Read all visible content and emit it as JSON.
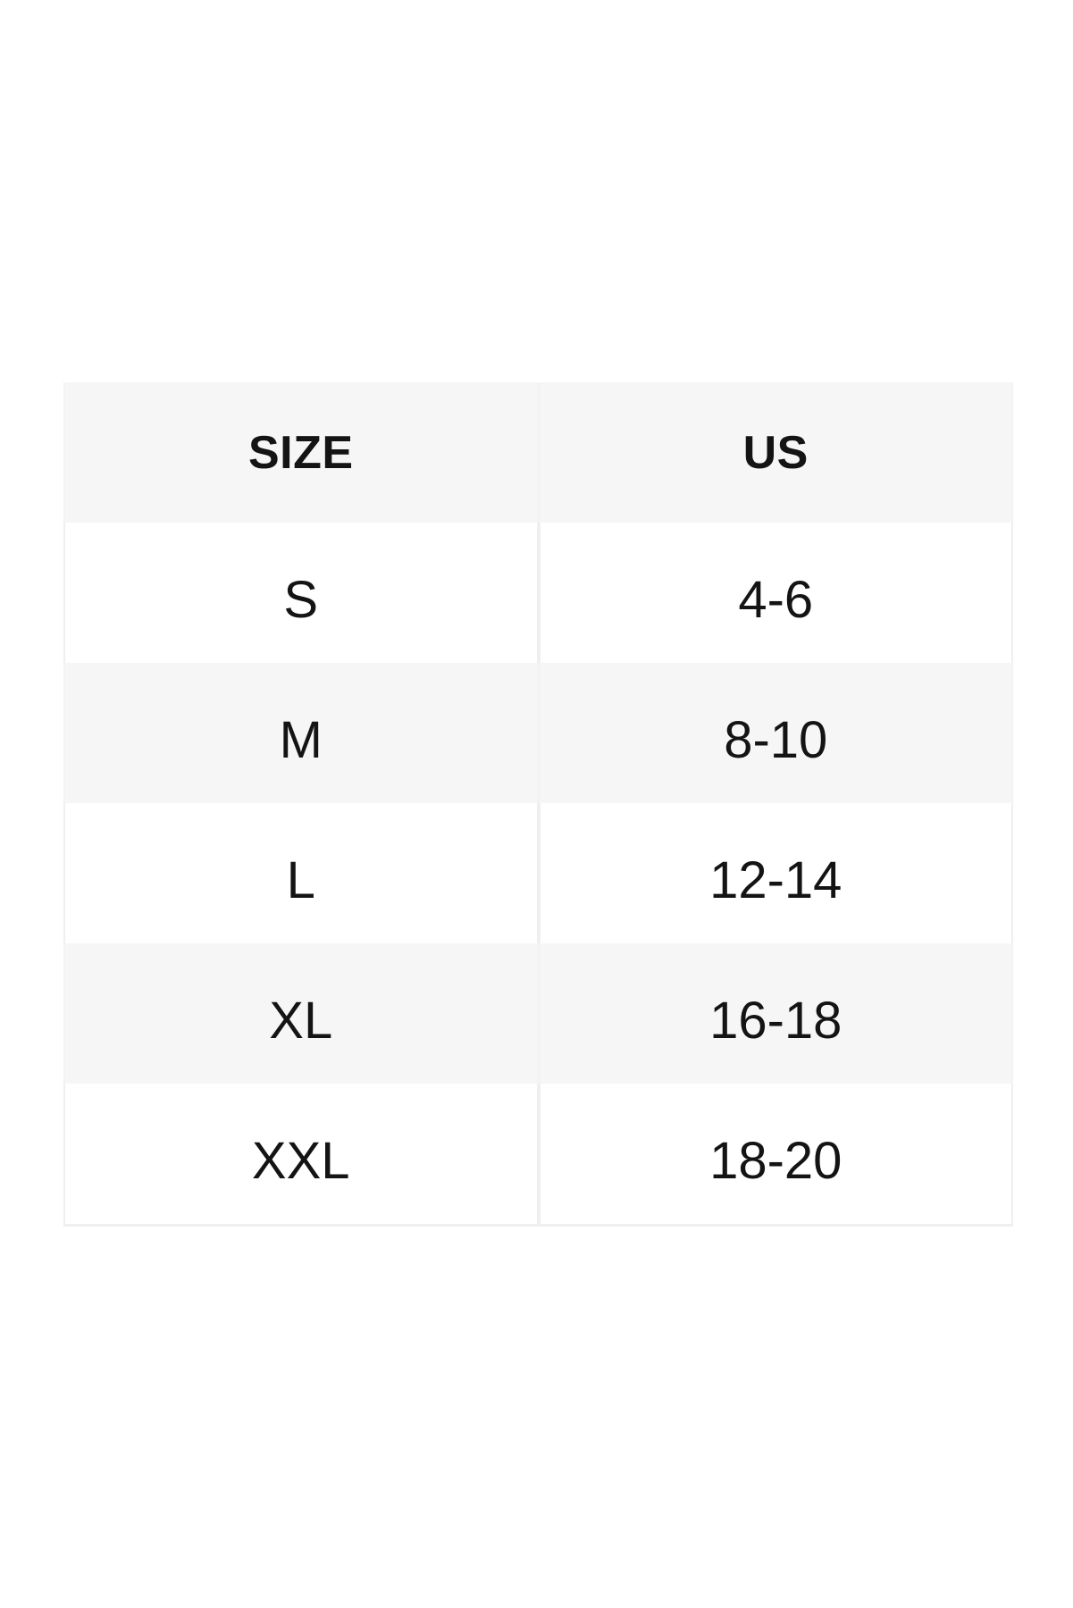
{
  "chart_data": {
    "type": "table",
    "columns": [
      "SIZE",
      "US"
    ],
    "rows": [
      [
        "S",
        "4-6"
      ],
      [
        "M",
        "8-10"
      ],
      [
        "L",
        "12-14"
      ],
      [
        "XL",
        "16-18"
      ],
      [
        "XXL",
        "18-20"
      ]
    ],
    "layout_hints": {
      "striped": true,
      "stripe_rows": [
        "header",
        "M",
        "XL"
      ],
      "column_alignment": "center"
    }
  },
  "colors": {
    "page_background": "#ffffff",
    "row_stripe": "#f6f6f6",
    "row_plain": "#ffffff",
    "divider": "#efefef",
    "text": "#141414"
  }
}
